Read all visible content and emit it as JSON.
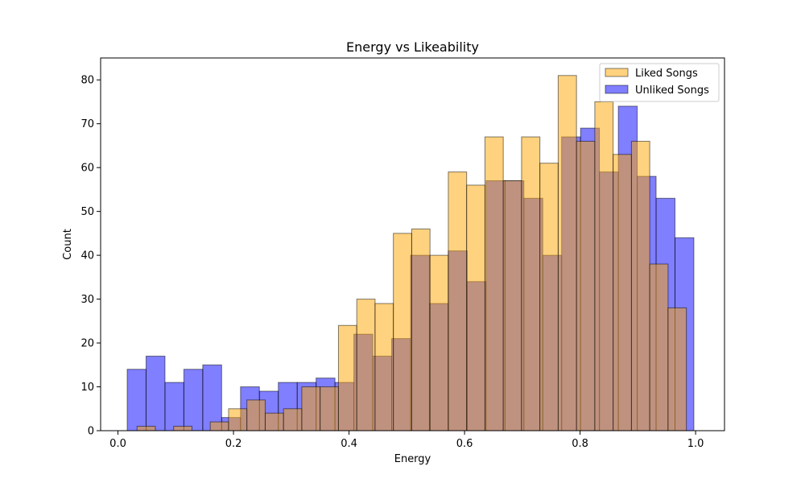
{
  "chart_data": {
    "type": "histogram",
    "title": "Energy vs Likeability",
    "xlabel": "Energy",
    "ylabel": "Count",
    "xlim": [
      -0.03,
      1.05
    ],
    "ylim": [
      0,
      85
    ],
    "xticks": [
      "0.0",
      "0.2",
      "0.4",
      "0.6",
      "0.8",
      "1.0"
    ],
    "yticks": [
      "0",
      "10",
      "20",
      "30",
      "40",
      "50",
      "60",
      "70",
      "80"
    ],
    "grid": false,
    "legend_position": "top-right",
    "series": [
      {
        "name": "Liked Songs",
        "color": "#FFA500",
        "bin_start": 0.033,
        "bin_width": 0.0317,
        "values": [
          1,
          0,
          1,
          0,
          2,
          5,
          7,
          4,
          5,
          10,
          10,
          24,
          30,
          29,
          45,
          46,
          40,
          59,
          56,
          67,
          57,
          67,
          61,
          81,
          66,
          75,
          63,
          66,
          38,
          28
        ]
      },
      {
        "name": "Unliked Songs",
        "color": "#0000FF",
        "bin_start": 0.016,
        "bin_width": 0.0327,
        "values": [
          14,
          17,
          11,
          14,
          15,
          3,
          10,
          9,
          11,
          11,
          12,
          11,
          22,
          17,
          21,
          40,
          29,
          41,
          34,
          57,
          57,
          53,
          40,
          67,
          69,
          59,
          74,
          58,
          53,
          44
        ]
      }
    ]
  }
}
